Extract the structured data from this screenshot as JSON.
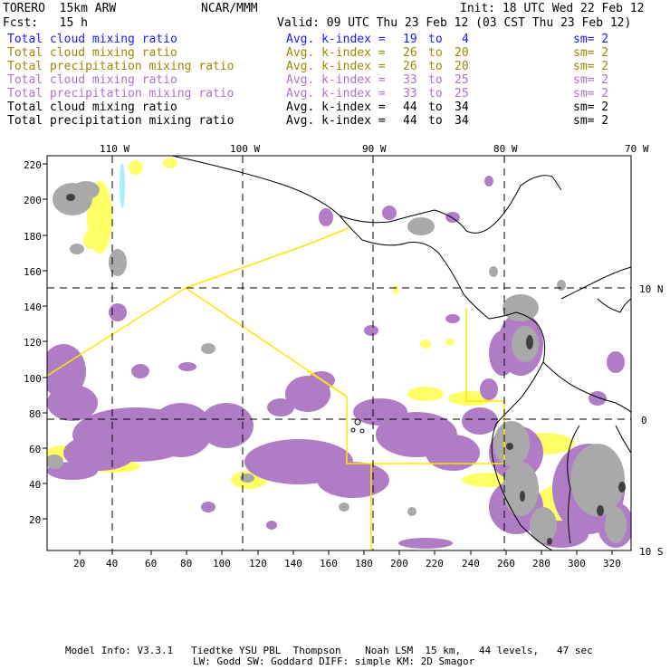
{
  "header": {
    "model": "TORERO  15km ARW",
    "center": "NCAR/MMM",
    "init": "Init: 18 UTC Wed 22 Feb 12",
    "fcst": "Fcst:   15 h",
    "valid": "Valid: 09 UTC Thu 23 Feb 12 (03 CST Thu 23 Feb 12)"
  },
  "legend": [
    {
      "field": "Total cloud mixing ratio",
      "avg": "Avg. k-index =",
      "k1": "19",
      "to": "to",
      "k2": "4",
      "sm": "sm= 2",
      "color": "#1a1aff"
    },
    {
      "field": "Total cloud mixing ratio",
      "avg": "Avg. k-index =",
      "k1": "26",
      "to": "to",
      "k2": "20",
      "sm": "sm= 2",
      "color": "#9a8a00"
    },
    {
      "field": "Total precipitation mixing ratio",
      "avg": "Avg. k-index =",
      "k1": "26",
      "to": "to",
      "k2": "20",
      "sm": "sm= 2",
      "color": "#9a8a00"
    },
    {
      "field": "Total cloud mixing ratio",
      "avg": "Avg. k-index =",
      "k1": "33",
      "to": "to",
      "k2": "25",
      "sm": "sm= 2",
      "color": "#b070d0"
    },
    {
      "field": "Total precipitation mixing ratio",
      "avg": "Avg. k-index =",
      "k1": "33",
      "to": "to",
      "k2": "25",
      "sm": "sm= 2",
      "color": "#b070d0"
    },
    {
      "field": "Total cloud mixing ratio",
      "avg": "Avg. k-index =",
      "k1": "44",
      "to": "to",
      "k2": "34",
      "sm": "sm= 2",
      "color": "#000000"
    },
    {
      "field": "Total precipitation mixing ratio",
      "avg": "Avg. k-index =",
      "k1": "44",
      "to": "to",
      "k2": "34",
      "sm": "sm= 2",
      "color": "#000000"
    }
  ],
  "axes": {
    "top_lon": [
      "110 W",
      "100 W",
      "90 W",
      "80 W",
      "70 W"
    ],
    "right_lat": [
      "10 N",
      "0",
      "10 S"
    ],
    "left_y": [
      "220",
      "200",
      "180",
      "160",
      "140",
      "120",
      "100",
      "80",
      "60",
      "40",
      "20"
    ],
    "bottom_x": [
      "20",
      "40",
      "60",
      "80",
      "100",
      "120",
      "140",
      "160",
      "180",
      "200",
      "220",
      "240",
      "260",
      "280",
      "300",
      "320"
    ]
  },
  "footer": {
    "line1": "Model Info: V3.3.1   Tiedtke YSU PBL  Thompson    Noah LSM  15 km,   44 levels,   47 sec",
    "line2": "LW: Godd SW: Goddard DIFF: simple KM: 2D Smagor"
  },
  "colors": {
    "purple": "#b07cc6",
    "yellow": "#ffff66",
    "gray": "#a9a9a9",
    "darkgray": "#505050",
    "domain_line": "#ffe600",
    "cyan": "#aaeeff"
  }
}
